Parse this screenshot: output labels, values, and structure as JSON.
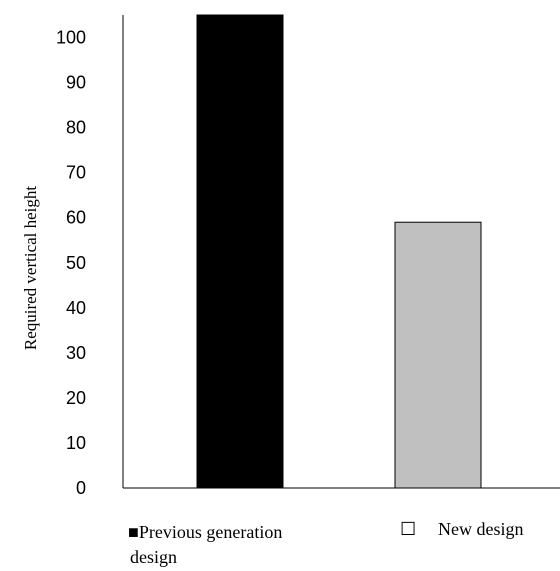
{
  "chart_data": {
    "type": "bar",
    "title": "",
    "xlabel": "",
    "ylabel": "Required  vertical height",
    "ylim": [
      0,
      105
    ],
    "yticks": [
      0,
      10,
      20,
      30,
      40,
      50,
      60,
      70,
      80,
      90,
      100
    ],
    "grid": false,
    "legend_position": "bottom",
    "series": [
      {
        "name": "Previous generation design",
        "value": 105,
        "color": "#000000",
        "marker": "filled-square"
      },
      {
        "name": "New design",
        "value": 59,
        "color": "#c0c0c0",
        "marker": "hollow-square"
      }
    ],
    "legend": {
      "items": [
        {
          "marker_glyph": "■",
          "line1": "Previous generation",
          "line2": "design"
        },
        {
          "marker_glyph": "☐",
          "line1": "New design",
          "line2": ""
        }
      ]
    }
  }
}
